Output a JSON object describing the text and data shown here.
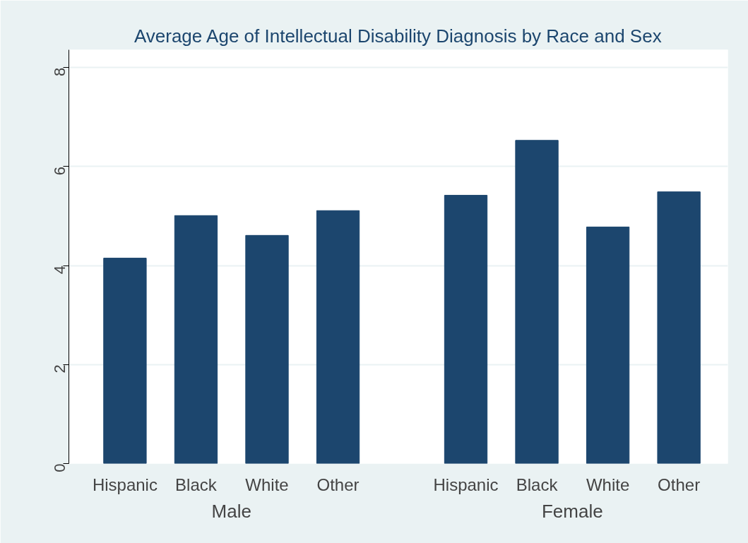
{
  "chart_data": {
    "type": "bar",
    "title": "Average Age of Intellectual Disability Diagnosis by Race and Sex",
    "categories": [
      "Hispanic",
      "Black",
      "White",
      "Other",
      "Hispanic",
      "Black",
      "White",
      "Other"
    ],
    "values": [
      4.15,
      5.01,
      4.61,
      5.11,
      5.42,
      6.53,
      4.78,
      5.49
    ],
    "color": "#1c466e",
    "annotations": [
      "Male",
      "Female"
    ],
    "ylim": [
      0,
      8.36
    ],
    "yticks": [
      0,
      2,
      4,
      6,
      8
    ],
    "grid": "y"
  }
}
